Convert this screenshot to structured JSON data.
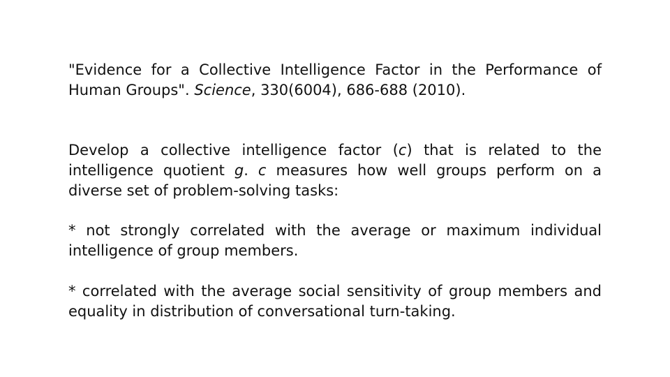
{
  "citation": {
    "title_part": "\"Evidence for a Collective Intelligence Factor in the Performance of Human Groups\".",
    "journal": "Science",
    "details": ", 330(6004), 686-688 (2010)."
  },
  "summary": {
    "part1": "Develop a collective intelligence factor (",
    "c_symbol": "c",
    "part2": ") that is related to the intelligence quotient ",
    "g_symbol": "g",
    "part3": ". ",
    "c_symbol_2": "c",
    "part4": " measures how well groups perform on a diverse set of problem-solving tasks:"
  },
  "bullets": [
    "* not strongly correlated with the average or maximum individual intelligence of group members.",
    "* correlated with the average social sensitivity of group members and equality in distribution of conversational turn-taking."
  ]
}
